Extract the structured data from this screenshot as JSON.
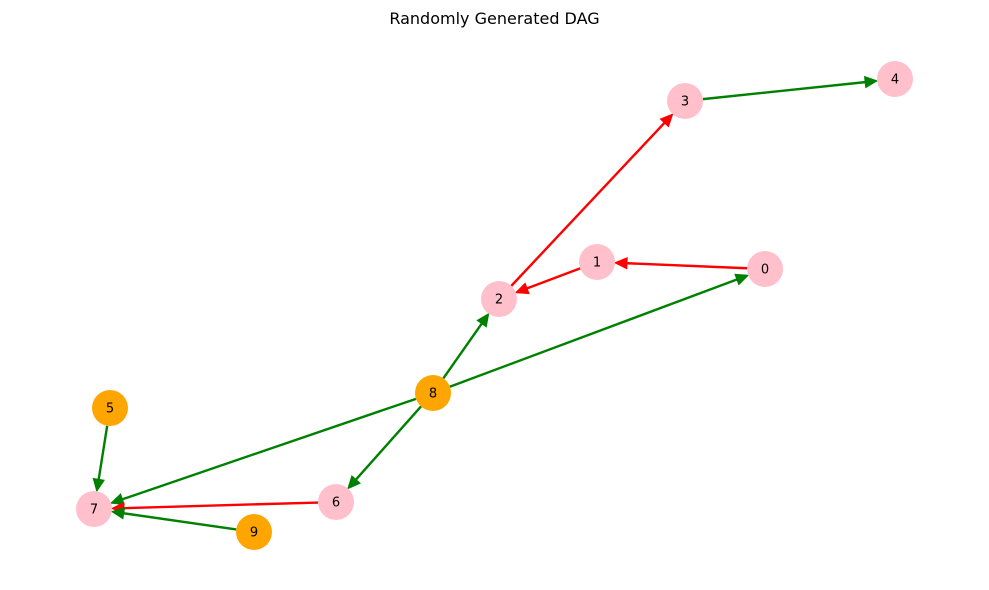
{
  "diagram": {
    "title": "Randomly Generated DAG",
    "colors": {
      "node_pink": "#ffc0cb",
      "node_orange": "#ffa500",
      "edge_red": "#ff0000",
      "edge_green": "#008000"
    },
    "nodes": [
      {
        "id": "0",
        "label": "0",
        "color": "node_pink"
      },
      {
        "id": "1",
        "label": "1",
        "color": "node_pink"
      },
      {
        "id": "2",
        "label": "2",
        "color": "node_pink"
      },
      {
        "id": "3",
        "label": "3",
        "color": "node_pink"
      },
      {
        "id": "4",
        "label": "4",
        "color": "node_pink"
      },
      {
        "id": "5",
        "label": "5",
        "color": "node_orange"
      },
      {
        "id": "6",
        "label": "6",
        "color": "node_pink"
      },
      {
        "id": "7",
        "label": "7",
        "color": "node_pink"
      },
      {
        "id": "8",
        "label": "8",
        "color": "node_orange"
      },
      {
        "id": "9",
        "label": "9",
        "color": "node_orange"
      }
    ],
    "edges": [
      {
        "from": "3",
        "to": "4",
        "color": "edge_green"
      },
      {
        "from": "2",
        "to": "3",
        "color": "edge_red"
      },
      {
        "from": "1",
        "to": "2",
        "color": "edge_red"
      },
      {
        "from": "0",
        "to": "1",
        "color": "edge_red"
      },
      {
        "from": "8",
        "to": "2",
        "color": "edge_green"
      },
      {
        "from": "8",
        "to": "0",
        "color": "edge_green"
      },
      {
        "from": "8",
        "to": "6",
        "color": "edge_green"
      },
      {
        "from": "8",
        "to": "7",
        "color": "edge_green"
      },
      {
        "from": "5",
        "to": "7",
        "color": "edge_green"
      },
      {
        "from": "6",
        "to": "7",
        "color": "edge_red"
      },
      {
        "from": "9",
        "to": "7",
        "color": "edge_green"
      }
    ]
  }
}
